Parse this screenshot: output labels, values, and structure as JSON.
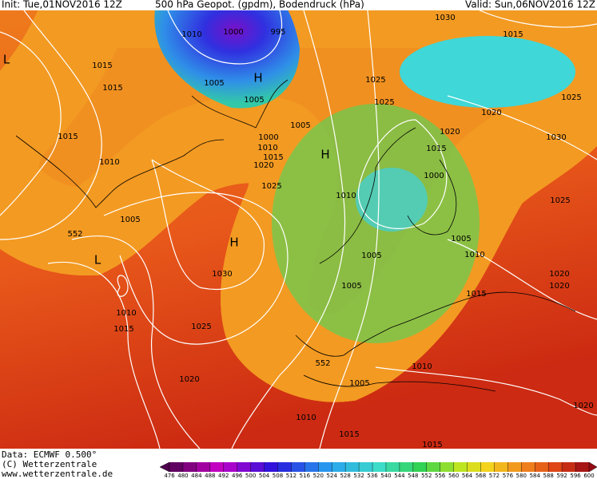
{
  "header": {
    "init": "Init: Tue,01NOV2016 12Z",
    "title": "500 hPa Geopot. (gpdm), Bodendruck (hPa)",
    "valid": "Valid: Sun,06NOV2016 12Z"
  },
  "map": {
    "labels": [
      "1010",
      "1000",
      "995",
      "1030",
      "1015",
      "L",
      "1015",
      "1005",
      "H",
      "1025",
      "1015",
      "1025",
      "1025",
      "1005",
      "1020",
      "1005",
      "1000",
      "1020",
      "1030",
      "1015",
      "1010",
      "1015",
      "H",
      "1015",
      "1020",
      "1010",
      "1000",
      "1025",
      "1010",
      "1025",
      "1005",
      "552",
      "H",
      "1005",
      "1010",
      "L",
      "1005",
      "1020",
      "1030",
      "1005",
      "1020",
      "1015",
      "1010",
      "1015",
      "1025",
      "1020",
      "552",
      "1010",
      "1005",
      "1010",
      "1015",
      "1015",
      "1020"
    ]
  },
  "footer": {
    "data": "Data: ECMWF  0.500°",
    "copyright": "(C) Wetterzentrale",
    "url": "www.wetterzentrale.de"
  },
  "colorbar": {
    "levels": [
      476,
      480,
      484,
      488,
      492,
      496,
      500,
      504,
      508,
      512,
      516,
      520,
      524,
      528,
      532,
      536,
      540,
      544,
      548,
      552,
      556,
      560,
      564,
      568,
      572,
      576,
      580,
      584,
      588,
      592,
      596,
      600
    ]
  }
}
